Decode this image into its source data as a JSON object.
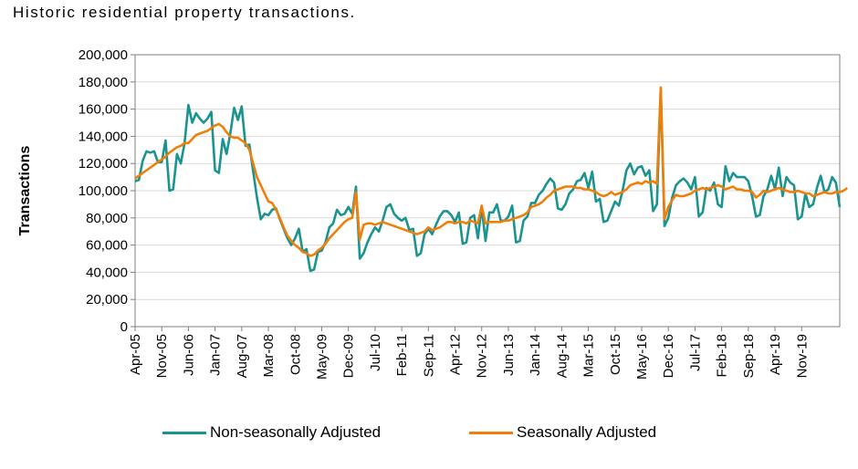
{
  "caption": "Historic residential property transactions.",
  "chart_data": {
    "type": "line",
    "title": "",
    "xlabel": "",
    "ylabel": "Transactions",
    "ylim": [
      0,
      200000
    ],
    "y_ticks": [
      "0",
      "20,000",
      "40,000",
      "60,000",
      "80,000",
      "100,000",
      "120,000",
      "140,000",
      "160,000",
      "180,000",
      "200,000"
    ],
    "x_tick_labels": [
      "Apr-05",
      "Nov-05",
      "Jun-06",
      "Jan-07",
      "Aug-07",
      "Mar-08",
      "Oct-08",
      "May-09",
      "Dec-09",
      "Jul-10",
      "Feb-11",
      "Sep-11",
      "Apr-12",
      "Nov-12",
      "Jun-13",
      "Jan-14",
      "Aug-14",
      "Mar-15",
      "Oct-15",
      "May-16",
      "Dec-16",
      "Jul-17",
      "Feb-18",
      "Sep-18",
      "Apr-19",
      "Nov-19"
    ],
    "x_start": "Apr-05",
    "legend_position": "bottom",
    "series": [
      {
        "name": "Non-seasonally Adjusted",
        "color": "#1a9391",
        "values": [
          107000,
          108000,
          122000,
          129000,
          128000,
          129000,
          121000,
          121000,
          137000,
          100000,
          101000,
          127000,
          120000,
          135000,
          163000,
          150000,
          157000,
          153000,
          150000,
          153000,
          158000,
          115000,
          113000,
          138000,
          127000,
          142000,
          161000,
          152000,
          162000,
          133000,
          134000,
          114000,
          95000,
          79000,
          83000,
          82000,
          86000,
          87000,
          79000,
          72000,
          65000,
          60000,
          65000,
          72000,
          55000,
          57000,
          41000,
          42000,
          55000,
          56000,
          62000,
          73000,
          76000,
          86000,
          82000,
          83000,
          88000,
          83000,
          103000,
          50000,
          54000,
          62000,
          68000,
          73000,
          70000,
          78000,
          88000,
          90000,
          83000,
          80000,
          78000,
          80000,
          71000,
          72000,
          52000,
          54000,
          68000,
          72000,
          68000,
          75000,
          81000,
          85000,
          85000,
          82000,
          77000,
          84000,
          61000,
          62000,
          80000,
          82000,
          65000,
          88000,
          63000,
          84000,
          84000,
          90000,
          78000,
          78000,
          81000,
          89000,
          62000,
          63000,
          78000,
          81000,
          91000,
          91000,
          97000,
          100000,
          105000,
          109000,
          106000,
          87000,
          86000,
          90000,
          98000,
          101000,
          107000,
          108000,
          113000,
          102000,
          114000,
          92000,
          94000,
          77000,
          78000,
          85000,
          92000,
          89000,
          100000,
          115000,
          120000,
          112000,
          117000,
          118000,
          111000,
          115000,
          85000,
          90000,
          175000,
          74000,
          80000,
          95000,
          104000,
          107000,
          109000,
          106000,
          101000,
          110000,
          81000,
          84000,
          102000,
          100000,
          106000,
          90000,
          88000,
          118000,
          107000,
          113000,
          110000,
          110000,
          110000,
          107000,
          96000,
          81000,
          82000,
          96000,
          101000,
          111000,
          101000,
          117000,
          96000,
          110000,
          106000,
          104000,
          79000,
          81000,
          98000,
          88000,
          90000,
          102000,
          111000,
          99000,
          101000,
          110000,
          106000,
          88000
        ],
        "_wavelet_note": ""
      },
      {
        "name": "Seasonally Adjusted",
        "color": "#f07f09",
        "values": [
          109000,
          111000,
          113000,
          115000,
          117000,
          119000,
          121000,
          123000,
          125000,
          128000,
          130000,
          132000,
          133000,
          135000,
          135000,
          138000,
          141000,
          142000,
          143000,
          144000,
          146000,
          148000,
          149000,
          147000,
          143000,
          140000,
          139000,
          139000,
          137000,
          135000,
          130000,
          120000,
          110000,
          104000,
          98000,
          92000,
          91000,
          86000,
          80000,
          73000,
          67000,
          63000,
          60000,
          58000,
          55000,
          54000,
          52000,
          53000,
          56000,
          58000,
          61000,
          65000,
          68000,
          71000,
          74000,
          77000,
          79000,
          80000,
          99000,
          64000,
          75000,
          76000,
          76000,
          75000,
          76000,
          77000,
          76000,
          75000,
          74000,
          73000,
          72000,
          71000,
          70000,
          69000,
          68000,
          69000,
          70000,
          73000,
          71000,
          72000,
          73000,
          75000,
          77000,
          77000,
          76000,
          77000,
          77000,
          76000,
          78000,
          77000,
          76000,
          89000,
          76000,
          77000,
          77000,
          77000,
          77000,
          78000,
          78000,
          79000,
          80000,
          81000,
          82000,
          84000,
          88000,
          89000,
          90000,
          92000,
          95000,
          97000,
          100000,
          101000,
          102000,
          103000,
          103000,
          103000,
          102000,
          102000,
          101000,
          101000,
          100000,
          99000,
          97000,
          96000,
          97000,
          99000,
          97000,
          98000,
          99000,
          101000,
          104000,
          105000,
          106000,
          105000,
          107000,
          106000,
          107000,
          105000,
          176000,
          79000,
          88000,
          93000,
          97000,
          96000,
          96000,
          97000,
          98000,
          100000,
          101000,
          102000,
          101000,
          102000,
          103000,
          104000,
          103000,
          101000,
          102000,
          103000,
          101000,
          101000,
          100000,
          100000,
          99000,
          95000,
          97000,
          100000,
          99000,
          100000,
          101000,
          102000,
          101000,
          100000,
          99000,
          99000,
          100000,
          99000,
          98000,
          98000,
          96000,
          97000,
          98000,
          99000,
          98000,
          98000,
          99000,
          99000,
          100000,
          102000
        ]
      }
    ]
  }
}
